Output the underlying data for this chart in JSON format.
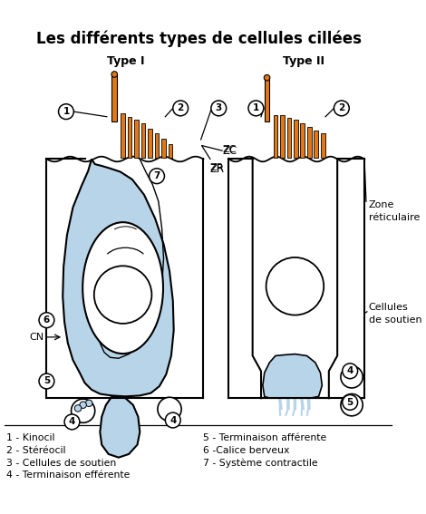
{
  "title": "Les différents types de cellules cillées",
  "title_fontsize": 12,
  "bg_color": "#ffffff",
  "type1_label": "Type I",
  "type2_label": "Type II",
  "legend_items_left": [
    "1 - Kinocil",
    "2 - Stéréocil",
    "3 - Cellules de soutien",
    "4 - Terminaison efférente"
  ],
  "legend_items_right": [
    "5 - Terminaison afférente",
    "6 -Calice berveux",
    "7 - Système contractile"
  ],
  "hair_color": "#e07818",
  "cell_body_color": "#b8d4e8",
  "cell_outline_color": "#000000",
  "label_zc": "ZC",
  "label_zr": "ZR",
  "label_cn": "CN",
  "label_zone_ret": "Zone\nréticulaire",
  "label_cellules_soutien": "Cellules\nde soutien"
}
